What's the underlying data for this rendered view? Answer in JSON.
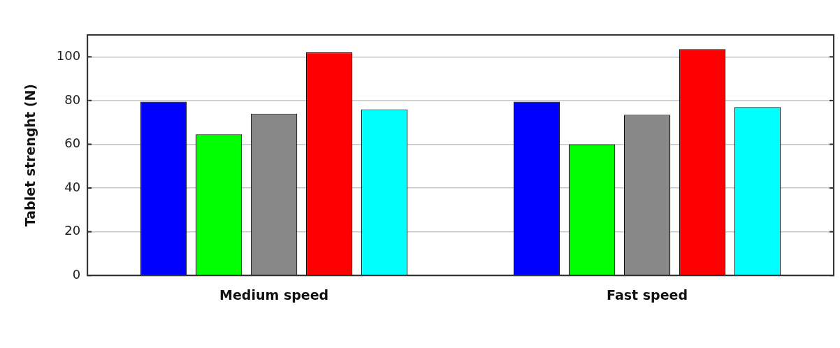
{
  "chart_data": {
    "type": "bar",
    "ylabel": "Tablet strenght (N)",
    "categories": [
      "Medium speed",
      "Fast speed"
    ],
    "series": [
      {
        "color": "#0000ff",
        "values": [
          79.5,
          79.5
        ]
      },
      {
        "color": "#00ff00",
        "values": [
          64.5,
          60
        ]
      },
      {
        "color": "#888888",
        "values": [
          74,
          73.5
        ]
      },
      {
        "color": "#ff0000",
        "values": [
          102,
          103.5
        ]
      },
      {
        "color": "#00ffff",
        "values": [
          76,
          77
        ]
      }
    ],
    "ylim": [
      0,
      110
    ],
    "yticks": [
      0,
      20,
      40,
      60,
      80,
      100
    ],
    "grid": "y",
    "legend": false
  }
}
